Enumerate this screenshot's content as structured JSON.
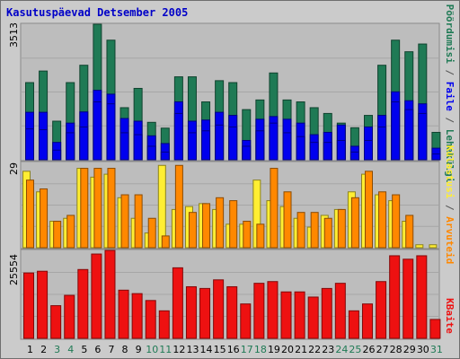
{
  "title": "Kasutuspäevad Detsember 2005",
  "colors": {
    "frame_bg": "#cbcbcb",
    "plot_bg": "#bdbdbd",
    "pages": "#1f7a55",
    "files": "#0000ee",
    "visits": "#ffee33",
    "hits": "#ff8800",
    "kbytes": "#ee1111",
    "weekday_label": "#000000",
    "weekend_label": "#1f7a55"
  },
  "right_labels": {
    "top": [
      {
        "text": "Pöördumisi",
        "color": "#1f7a55"
      },
      {
        "text": " / ",
        "color": "#555555"
      },
      {
        "text": "Faile",
        "color": "#0000ee"
      },
      {
        "text": " / ",
        "color": "#555555"
      },
      {
        "text": "Lehekülgi",
        "color": "#1f7a55"
      }
    ],
    "middle": [
      {
        "text": "Külastusi",
        "color": "#ffee33"
      },
      {
        "text": " / ",
        "color": "#555555"
      },
      {
        "text": "Arvuteid",
        "color": "#ff8800"
      }
    ],
    "bottom": [
      {
        "text": "KBaite",
        "color": "#ee1111"
      }
    ]
  },
  "chart_data": {
    "type": "bar",
    "title": "Kasutuspäevad Detsember 2005",
    "categories": [
      "1",
      "2",
      "3",
      "4",
      "5",
      "6",
      "7",
      "8",
      "9",
      "10",
      "11",
      "12",
      "13",
      "14",
      "15",
      "16",
      "17",
      "18",
      "19",
      "20",
      "21",
      "22",
      "23",
      "24",
      "25",
      "26",
      "27",
      "28",
      "29",
      "30",
      "31"
    ],
    "weekend_days": [
      "3",
      "4",
      "10",
      "11",
      "17",
      "18",
      "24",
      "25",
      "31"
    ],
    "panels": [
      {
        "ymax_label": "3513",
        "ymax": 3513,
        "series": [
          {
            "name": "Pöördumisi",
            "values": [
              2000,
              2300,
              1000,
              2000,
              2450,
              3513,
              3100,
              1350,
              1850,
              970,
              820,
              2150,
              2150,
              1500,
              2050,
              2000,
              1300,
              1550,
              2250,
              1550,
              1500,
              1350,
              1200,
              950,
              830,
              1150,
              2450,
              3100,
              2800,
              3000,
              710
            ]
          },
          {
            "name": "Faile",
            "values": [
              1230,
              1230,
              450,
              950,
              1240,
              1800,
              1700,
              1070,
              1000,
              620,
              420,
              1500,
              1000,
              1030,
              1230,
              1150,
              500,
              1050,
              1120,
              1050,
              950,
              650,
              710,
              900,
              350,
              850,
              1150,
              1760,
              1530,
              1450,
              300
            ]
          },
          {
            "name": "Lehekülgi",
            "values": [
              800,
              780,
              250,
              700,
              850,
              1500,
              1450,
              700,
              650,
              350,
              200,
              1200,
              700,
              750,
              900,
              850,
              350,
              750,
              950,
              700,
              600,
              450,
              450,
              500,
              200,
              500,
              850,
              1500,
              1300,
              1200,
              150
            ]
          }
        ]
      },
      {
        "ymax_label": "29",
        "ymax": 29,
        "series": [
          {
            "name": "Külastusi",
            "values": [
              26,
              19,
              9,
              10,
              27,
              24,
              25,
              17,
              10,
              5,
              28,
              13,
              14,
              15,
              13,
              8,
              8,
              23,
              16,
              14,
              10,
              7,
              11,
              13,
              19,
              25,
              18,
              16,
              9,
              1,
              1
            ]
          },
          {
            "name": "Arvuteid",
            "values": [
              23,
              20,
              9,
              11,
              27,
              27,
              27,
              18,
              18,
              10,
              4,
              28,
              12,
              15,
              17,
              16,
              9,
              8,
              27,
              19,
              12,
              12,
              10,
              13,
              17,
              26,
              19,
              18,
              11,
              0,
              0
            ]
          }
        ]
      },
      {
        "ymax_label": "25554",
        "ymax": 25554,
        "series": [
          {
            "name": "KBaite",
            "values": [
              19000,
              19500,
              9500,
              12500,
              20000,
              24500,
              25554,
              14000,
              13000,
              11000,
              8000,
              20500,
              15000,
              14500,
              17000,
              15000,
              10000,
              16000,
              16500,
              13500,
              13500,
              12000,
              14500,
              16000,
              8000,
              10000,
              16500,
              24000,
              23000,
              24000,
              5500
            ]
          }
        ]
      }
    ]
  }
}
